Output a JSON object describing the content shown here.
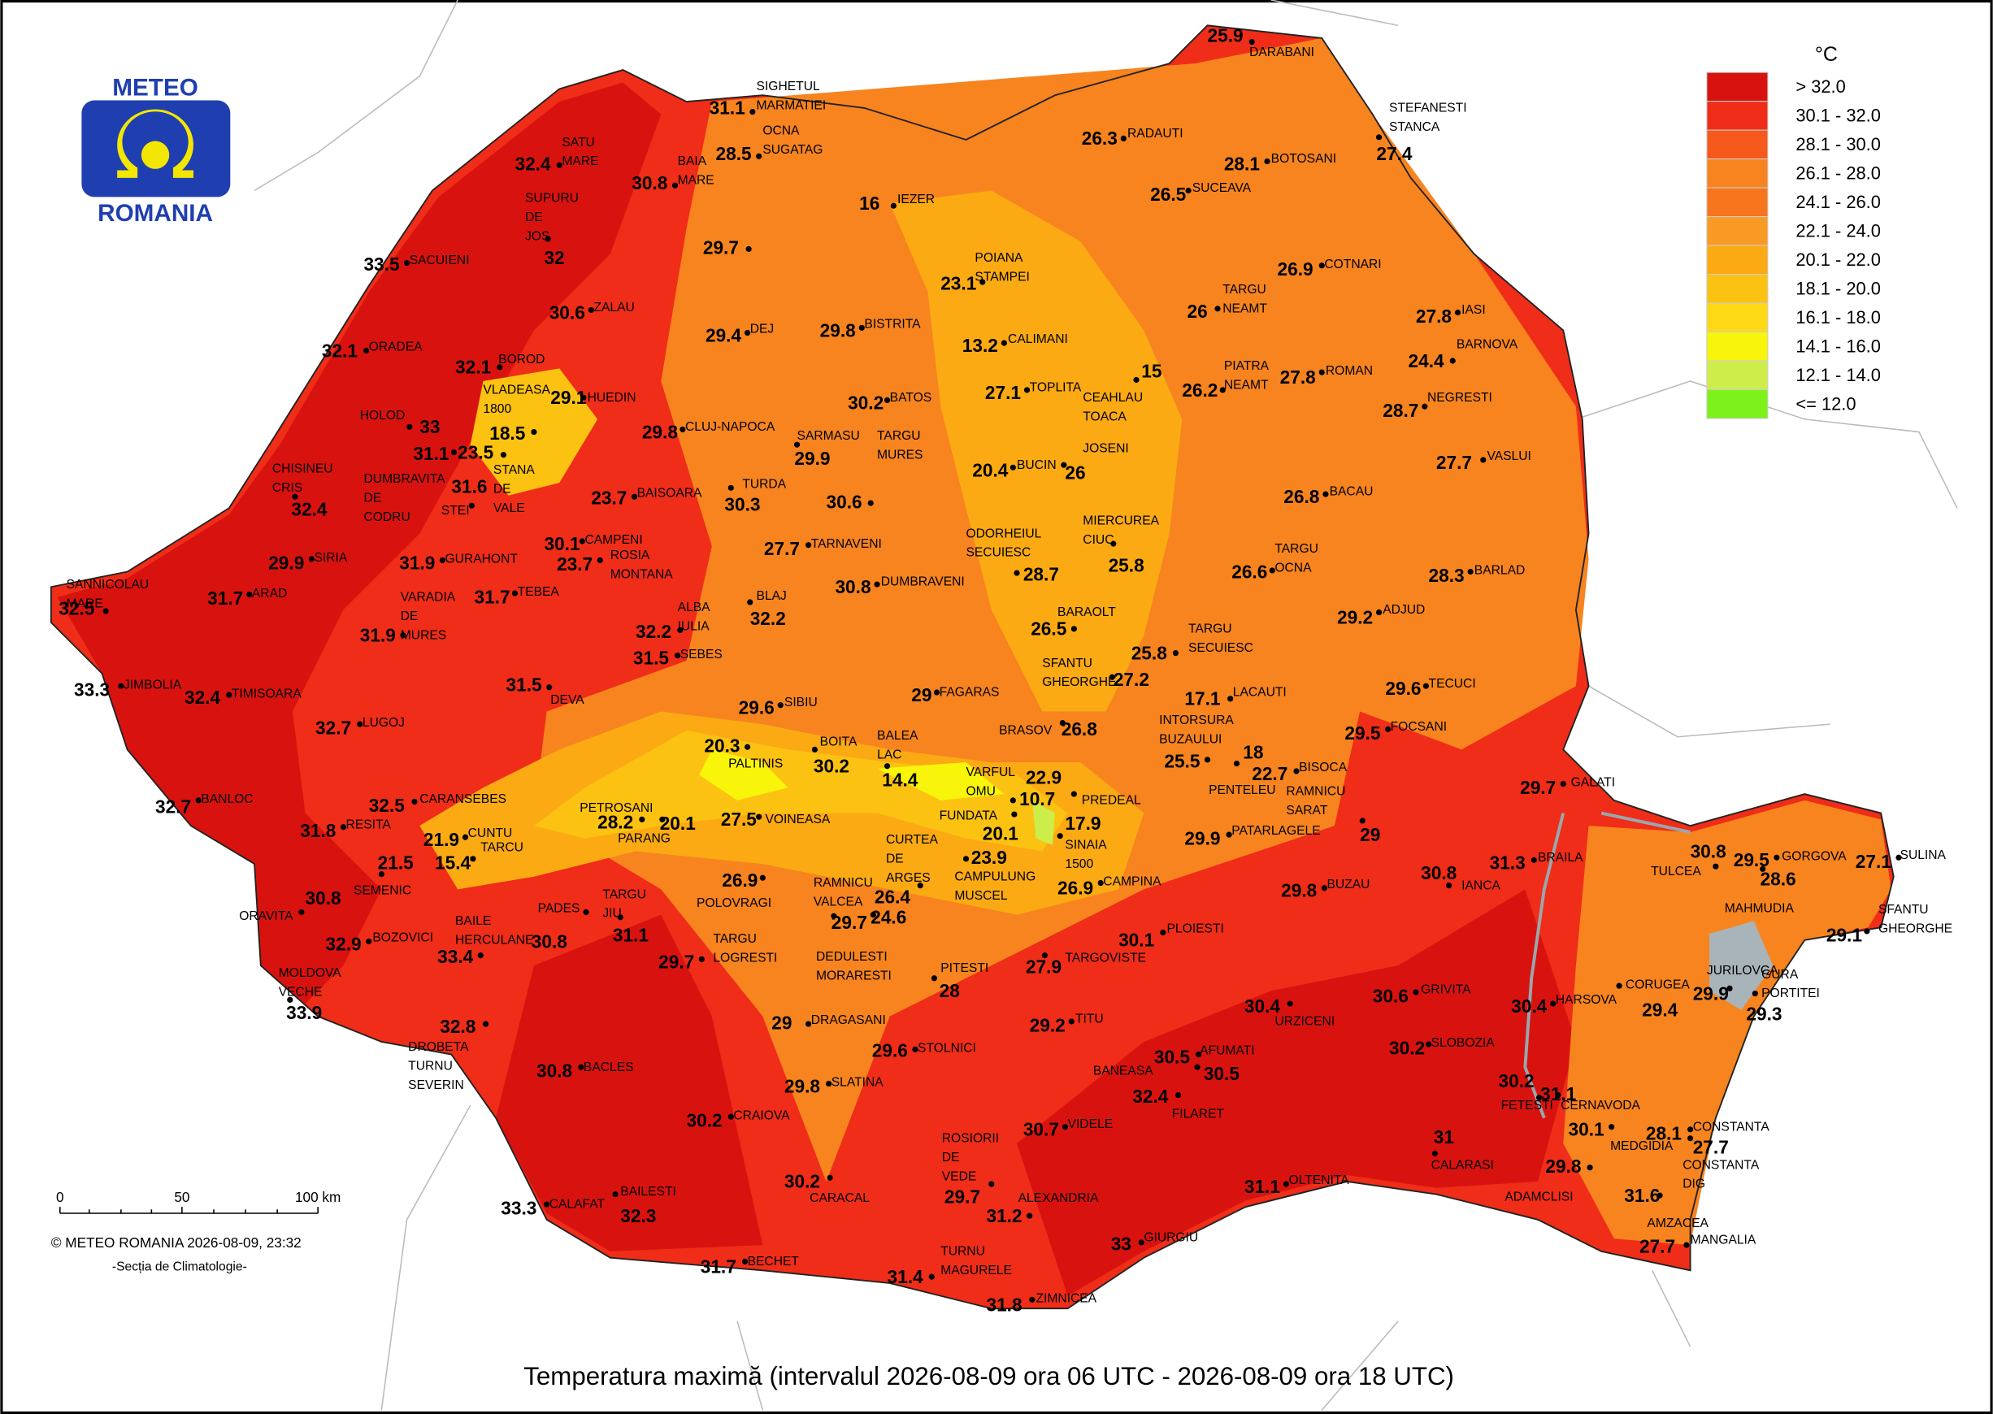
{
  "logo": {
    "top": "METEO",
    "bottom": "ROMANIA"
  },
  "legend": {
    "unit": "°C",
    "classes": [
      {
        "label": "> 32.0",
        "color": "#d8130f"
      },
      {
        "label": "30.1 - 32.0",
        "color": "#ef2d18"
      },
      {
        "label": "28.1 - 30.0",
        "color": "#f55a1c"
      },
      {
        "label": "26.1 - 28.0",
        "color": "#f7841f"
      },
      {
        "label": "24.1 - 26.0",
        "color": "#f7751c"
      },
      {
        "label": "22.1 - 24.0",
        "color": "#f99a24"
      },
      {
        "label": "20.1 - 22.0",
        "color": "#fbaa14"
      },
      {
        "label": "18.1 - 20.0",
        "color": "#fcc212"
      },
      {
        "label": "16.1 - 18.0",
        "color": "#fcd914"
      },
      {
        "label": "14.1 - 16.0",
        "color": "#f8f50a"
      },
      {
        "label": "12.1 - 14.0",
        "color": "#cdee4a"
      },
      {
        "label": "<= 12.0",
        "color": "#7cf21a"
      }
    ]
  },
  "stations": [
    {
      "name": [
        "SIGHETUL",
        "MARMATIEI"
      ],
      "value": 31.1
    },
    {
      "name": [
        "OCNA",
        "SUGATAG"
      ],
      "value": 28.5
    },
    {
      "name": [
        "BAIA",
        "MARE"
      ],
      "value": 30.8
    },
    {
      "name": [
        "SATU",
        "MARE"
      ],
      "value": 32.4
    },
    {
      "name": [
        "SUPURU",
        "DE",
        "JOS"
      ],
      "value": 32
    },
    {
      "name": [
        "SACUIENI"
      ],
      "value": 33.5
    },
    {
      "name": [
        "ZALAU"
      ],
      "value": 30.6
    },
    {
      "name": [
        "ORADEA"
      ],
      "value": 32.1
    },
    {
      "name": [
        "BOROD"
      ],
      "value": 32.1
    },
    {
      "name": [
        "VLADEASA",
        "1800"
      ],
      "value": 18.5
    },
    {
      "name": [
        "HUEDIN"
      ],
      "value": 29.1
    },
    {
      "name": [
        "HOLOD"
      ],
      "value": 33
    },
    {
      "name": [
        "CHISINEU",
        "CRIS"
      ],
      "value": 32.4
    },
    {
      "name": [
        "DUMBRAVITA",
        "DE",
        "CODRU"
      ],
      "value": 31.1
    },
    {
      "name": [
        "STANA",
        "DE",
        "VALE"
      ],
      "value": 23.5
    },
    {
      "name": [
        "STEI"
      ],
      "value": 31.6
    },
    {
      "name": [
        "BAISOARA"
      ],
      "value": 23.7
    },
    {
      "name": [
        "CLUJ-NAPOCA"
      ],
      "value": 29.8
    },
    {
      "name": [
        "DEJ"
      ],
      "value": 29.4
    },
    {
      "name": [
        "BISTRITA"
      ],
      "value": 29.8
    },
    {
      "name": [
        "BATOS"
      ],
      "value": 30.2
    },
    {
      "name": [
        "SARMASU"
      ],
      "value": 29.9
    },
    {
      "name": [
        "TURDA"
      ],
      "value": 30.3
    },
    {
      "name": [
        "TARGU",
        "MURES"
      ],
      "value": 30.6
    },
    {
      "name": [],
      "value": 29.7
    },
    {
      "name": [
        "IEZER"
      ],
      "value": 16
    },
    {
      "name": [
        "POIANA",
        "STAMPEI"
      ],
      "value": 23.1
    },
    {
      "name": [
        "RADAUTI"
      ],
      "value": 26.3
    },
    {
      "name": [
        "DARABANI"
      ],
      "value": 25.9
    },
    {
      "name": [
        "STEFANESTI",
        "STANCA"
      ],
      "value": 27.4
    },
    {
      "name": [
        "BOTOSANI"
      ],
      "value": 28.1
    },
    {
      "name": [
        "SUCEAVA"
      ],
      "value": 26.5
    },
    {
      "name": [
        "COTNARI"
      ],
      "value": 26.9
    },
    {
      "name": [
        "TARGU",
        "NEAMT"
      ],
      "value": 26
    },
    {
      "name": [
        "IASI"
      ],
      "value": 27.8
    },
    {
      "name": [
        "BARNOVA"
      ],
      "value": 24.4
    },
    {
      "name": [
        "NEGRESTI"
      ],
      "value": 28.7
    },
    {
      "name": [
        "VASLUI"
      ],
      "value": 27.7
    },
    {
      "name": [
        "ROMAN"
      ],
      "value": 27.8
    },
    {
      "name": [
        "PIATRA",
        "NEAMT"
      ],
      "value": 26.2
    },
    {
      "name": [
        "CALIMANI"
      ],
      "value": 13.2
    },
    {
      "name": [
        "TOPLITA"
      ],
      "value": 27.1
    },
    {
      "name": [
        "CEAHLAU",
        "TOACA"
      ],
      "value": 15
    },
    {
      "name": [
        "BUCIN"
      ],
      "value": 20.4
    },
    {
      "name": [
        "JOSENI"
      ],
      "value": 26
    },
    {
      "name": [
        "ODORHEIUL",
        "SECUIESC"
      ],
      "value": 28.7
    },
    {
      "name": [
        "MIERCUREA",
        "CIUC"
      ],
      "value": 25.8
    },
    {
      "name": [
        "TARGU",
        "OCNA"
      ],
      "value": 26.6
    },
    {
      "name": [
        "BACAU"
      ],
      "value": 26.8
    },
    {
      "name": [
        "BARLAD"
      ],
      "value": 28.3
    },
    {
      "name": [
        "ADJUD"
      ],
      "value": 29.2
    },
    {
      "name": [
        "TECUCI"
      ],
      "value": 29.6
    },
    {
      "name": [
        "FOCSANI"
      ],
      "value": 29.5
    },
    {
      "name": [
        "GALATI"
      ],
      "value": 29.7
    },
    {
      "name": [
        "BRAILA"
      ],
      "value": 31.3
    },
    {
      "name": [
        "TULCEA"
      ],
      "value": 30.8
    },
    {
      "name": [
        "GORGOVA"
      ],
      "value": 29.5
    },
    {
      "name": [
        "MAHMUDIA"
      ],
      "value": 28.6
    },
    {
      "name": [
        "SULINA"
      ],
      "value": 27.1
    },
    {
      "name": [
        "SFANTU",
        "GHEORGHE"
      ],
      "value": 29.1
    },
    {
      "name": [
        "JURILOVCA"
      ],
      "value": 29.9
    },
    {
      "name": [
        "GURA",
        "PORTITEI"
      ],
      "value": 29.3
    },
    {
      "name": [
        "CORUGEA"
      ],
      "value": 29.4
    },
    {
      "name": [
        "HARSOVA"
      ],
      "value": 30.4
    },
    {
      "name": [
        "SLOBOZIA"
      ],
      "value": 30.2
    },
    {
      "name": [
        "FETESTI"
      ],
      "value": 30.2
    },
    {
      "name": [
        "CERNAVODA"
      ],
      "value": 31.1
    },
    {
      "name": [
        "CONSTANTA"
      ],
      "value": 28.1
    },
    {
      "name": [
        "CONSTANTA",
        "DIG"
      ],
      "value": 27.7
    },
    {
      "name": [
        "MEDGIDIA"
      ],
      "value": 30.1
    },
    {
      "name": [
        "ADAMCLISI"
      ],
      "value": 29.8
    },
    {
      "name": [
        "AMZACEA"
      ],
      "value": 31.6
    },
    {
      "name": [
        "MANGALIA"
      ],
      "value": 27.7
    },
    {
      "name": [
        "CALARASI"
      ],
      "value": 31
    },
    {
      "name": [
        "OLTENITA"
      ],
      "value": 31.1
    },
    {
      "name": [
        "GIURGIU"
      ],
      "value": 33
    },
    {
      "name": [
        "ZIMNICEA"
      ],
      "value": 31.8
    },
    {
      "name": [
        "TURNU",
        "MAGURELE"
      ],
      "value": 31.4
    },
    {
      "name": [
        "BECHET"
      ],
      "value": 31.7
    },
    {
      "name": [
        "BAILESTI"
      ],
      "value": 32.3
    },
    {
      "name": [
        "CALAFAT"
      ],
      "value": 33.3
    },
    {
      "name": [
        "CARACAL"
      ],
      "value": 30.2
    },
    {
      "name": [
        "ALEXANDRIA"
      ],
      "value": 31.2
    },
    {
      "name": [
        "ROSIORII",
        "DE",
        "VEDE"
      ],
      "value": 29.7
    },
    {
      "name": [
        "VIDELE"
      ],
      "value": 30.7
    },
    {
      "name": [
        "FILARET"
      ],
      "value": 32.4
    },
    {
      "name": [
        "BANEASA"
      ],
      "value": 30.5
    },
    {
      "name": [
        "AFUMATI"
      ],
      "value": 30.5
    },
    {
      "name": [
        "URZICENI"
      ],
      "value": 30.4
    },
    {
      "name": [
        "GRIVITA"
      ],
      "value": 30.6
    },
    {
      "name": [
        "IANCA"
      ],
      "value": 30.8
    },
    {
      "name": [
        "PLOIESTI"
      ],
      "value": 30.1
    },
    {
      "name": [
        "TARGOVISTE"
      ],
      "value": 27.9
    },
    {
      "name": [
        "TITU"
      ],
      "value": 29.2
    },
    {
      "name": [
        "BUZAU"
      ],
      "value": 29.8
    },
    {
      "name": [
        "PATARLAGELE"
      ],
      "value": 29.9
    },
    {
      "name": [
        "RAMNICU",
        "SARAT"
      ],
      "value": 29
    },
    {
      "name": [
        "BISOCA"
      ],
      "value": 22.7
    },
    {
      "name": [
        "PENTELEU"
      ],
      "value": 18
    },
    {
      "name": [
        "LACAUTI"
      ],
      "value": 17.1
    },
    {
      "name": [
        "INTORSURA",
        "BUZAULUI"
      ],
      "value": 25.5
    },
    {
      "name": [
        "TARGU",
        "SECUIESC"
      ],
      "value": 25.8
    },
    {
      "name": [
        "BARAOLT"
      ],
      "value": 26.5
    },
    {
      "name": [
        "SFANTU",
        "GHEORGHE"
      ],
      "value": 27.2
    },
    {
      "name": [
        "BRASOV"
      ],
      "value": 26.8
    },
    {
      "name": [
        "PREDEAL"
      ],
      "value": 22.9
    },
    {
      "name": [
        "VARFUL",
        "OMU"
      ],
      "value": 10.7
    },
    {
      "name": [
        "SINAIA",
        "1500"
      ],
      "value": 17.9
    },
    {
      "name": [
        "FUNDATA"
      ],
      "value": 20.1
    },
    {
      "name": [
        "CAMPINA"
      ],
      "value": 26.9
    },
    {
      "name": [
        "CAMPULUNG",
        "MUSCEL"
      ],
      "value": 23.9
    },
    {
      "name": [
        "FAGARAS"
      ],
      "value": 29
    },
    {
      "name": [
        "BALEA",
        "LAC"
      ],
      "value": 14.4
    },
    {
      "name": [
        "BOITA"
      ],
      "value": 30.2
    },
    {
      "name": [
        "SIBIU"
      ],
      "value": 29.6
    },
    {
      "name": [
        "PALTINIS"
      ],
      "value": 20.3
    },
    {
      "name": [
        "VOINEASA"
      ],
      "value": 27.5
    },
    {
      "name": [
        "PARANG"
      ],
      "value": 20.1
    },
    {
      "name": [
        "PETROSANI"
      ],
      "value": 28.2
    },
    {
      "name": [
        "CURTEA",
        "DE",
        "ARGES"
      ],
      "value": 26.4
    },
    {
      "name": [
        "RAMNICU",
        "VALCEA"
      ],
      "value": 29.7
    },
    {
      "name": [
        "DEDULESTI",
        "MORARESTI"
      ],
      "value": 24.6
    },
    {
      "name": [
        "POLOVRAGI"
      ],
      "value": 26.9
    },
    {
      "name": [
        "TARGU",
        "LOGRESTI"
      ],
      "value": 29.7
    },
    {
      "name": [
        "PITESTI"
      ],
      "value": 28
    },
    {
      "name": [
        "DRAGASANI"
      ],
      "value": 29
    },
    {
      "name": [
        "STOLNICI"
      ],
      "value": 29.6
    },
    {
      "name": [
        "SLATINA"
      ],
      "value": 29.8
    },
    {
      "name": [
        "CRAIOVA"
      ],
      "value": 30.2
    },
    {
      "name": [
        "BACLES"
      ],
      "value": 30.8
    },
    {
      "name": [
        "DROBETA",
        "TURNU",
        "SEVERIN"
      ],
      "value": 32.8
    },
    {
      "name": [
        "TARGU",
        "JIU"
      ],
      "value": 31.1
    },
    {
      "name": [
        "PADES"
      ],
      "value": 30.8
    },
    {
      "name": [
        "BAILE",
        "HERCULANE"
      ],
      "value": 33.4
    },
    {
      "name": [
        "BOZOVICI"
      ],
      "value": 32.9
    },
    {
      "name": [
        "MOLDOVA",
        "VECHE"
      ],
      "value": 33.9
    },
    {
      "name": [
        "ORAVITA"
      ],
      "value": 30.8
    },
    {
      "name": [
        "SEMENIC"
      ],
      "value": 21.5
    },
    {
      "name": [
        "CUNTU"
      ],
      "value": 21.9
    },
    {
      "name": [
        "TARCU"
      ],
      "value": 15.4
    },
    {
      "name": [
        "CARANSEBES"
      ],
      "value": 32.5
    },
    {
      "name": [
        "RESITA"
      ],
      "value": 31.8
    },
    {
      "name": [
        "BANLOC"
      ],
      "value": 32.7
    },
    {
      "name": [
        "LUGOJ"
      ],
      "value": 32.7
    },
    {
      "name": [
        "TIMISOARA"
      ],
      "value": 32.4
    },
    {
      "name": [
        "JIMBOLIA"
      ],
      "value": 33.3
    },
    {
      "name": [
        "SANNICOLAU",
        "MARE"
      ],
      "value": 32.5
    },
    {
      "name": [
        "ARAD"
      ],
      "value": 31.7
    },
    {
      "name": [
        "SIRIA"
      ],
      "value": 29.9
    },
    {
      "name": [
        "GURAHONT"
      ],
      "value": 31.9
    },
    {
      "name": [
        "TEBEA"
      ],
      "value": 31.7
    },
    {
      "name": [
        "VARADIA",
        "DE",
        "MURES"
      ],
      "value": 31.9
    },
    {
      "name": [
        "DEVA"
      ],
      "value": 31.5
    },
    {
      "name": [
        "SEBES"
      ],
      "value": 31.5
    },
    {
      "name": [
        "ALBA",
        "IULIA"
      ],
      "value": 32.2
    },
    {
      "name": [
        "BLAJ"
      ],
      "value": 32.2
    },
    {
      "name": [
        "CAMPENI"
      ],
      "value": 30.1
    },
    {
      "name": [
        "ROSIA",
        "MONTANA"
      ],
      "value": 23.7
    },
    {
      "name": [
        "TARNAVENI"
      ],
      "value": 27.7
    },
    {
      "name": [
        "DUMBRAVENI"
      ],
      "value": 30.8
    }
  ],
  "scale": {
    "ticks": [
      "0",
      "50",
      "100 km"
    ]
  },
  "credit": "© METEO ROMANIA 2026-08-09, 23:32",
  "department": "-Secția de Climatologie-",
  "title": "Temperatura maximă (intervalul 2026-08-09 ora 06 UTC - 2026-08-09 ora 18 UTC)"
}
